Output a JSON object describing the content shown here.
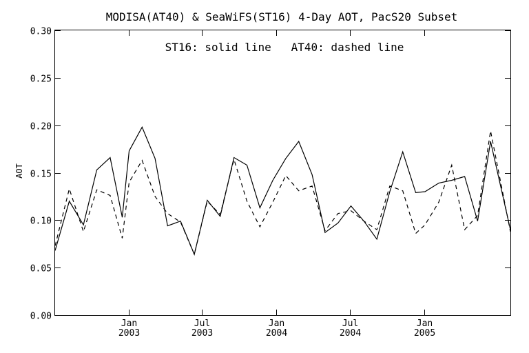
{
  "chart_data": {
    "type": "line",
    "title": "MODISA(AT40) & SeaWiFS(ST16) 4-Day AOT, PacS20 Subset",
    "annotation": "ST16: solid line   AT40: dashed line",
    "ylabel": "AOT",
    "xlabel": "",
    "ylim": [
      0.0,
      0.3
    ],
    "yticks": [
      0.0,
      0.05,
      0.1,
      0.15,
      0.2,
      0.25,
      0.3
    ],
    "ytick_labels": [
      "0.00",
      "0.05",
      "0.10",
      "0.15",
      "0.20",
      "0.25",
      "0.30"
    ],
    "xlim": [
      "2002-07-03",
      "2005-08-01"
    ],
    "xticks": [
      {
        "date": "2003-01-01",
        "line1": "Jan",
        "line2": "2003"
      },
      {
        "date": "2003-07-01",
        "line1": "Jul",
        "line2": "2003"
      },
      {
        "date": "2004-01-01",
        "line1": "Jan",
        "line2": "2004"
      },
      {
        "date": "2004-07-01",
        "line1": "Jul",
        "line2": "2004"
      },
      {
        "date": "2005-01-01",
        "line1": "Jan",
        "line2": "2005"
      }
    ],
    "grid": false,
    "legend": "none",
    "series": [
      {
        "name": "ST16",
        "style": "solid",
        "x": [
          "2002-07-03",
          "2002-08-07",
          "2002-09-11",
          "2002-10-14",
          "2002-11-16",
          "2002-12-16",
          "2003-01-02",
          "2003-02-03",
          "2003-03-07",
          "2003-04-07",
          "2003-05-09",
          "2003-06-12",
          "2003-07-14",
          "2003-08-15",
          "2003-09-18",
          "2003-10-20",
          "2003-11-21",
          "2003-12-23",
          "2004-01-24",
          "2004-02-25",
          "2004-03-29",
          "2004-04-30",
          "2004-06-01",
          "2004-07-03",
          "2004-08-04",
          "2004-09-05",
          "2004-10-07",
          "2004-11-08",
          "2004-12-10",
          "2005-01-02",
          "2005-02-05",
          "2005-03-09",
          "2005-04-10",
          "2005-05-12",
          "2005-06-13",
          "2005-08-01"
        ],
        "y": [
          0.068,
          0.12,
          0.095,
          0.153,
          0.166,
          0.103,
          0.173,
          0.198,
          0.165,
          0.094,
          0.099,
          0.064,
          0.121,
          0.104,
          0.166,
          0.158,
          0.113,
          0.142,
          0.165,
          0.183,
          0.148,
          0.087,
          0.097,
          0.115,
          0.099,
          0.08,
          0.13,
          0.172,
          0.129,
          0.13,
          0.139,
          0.142,
          0.146,
          0.099,
          0.183,
          0.09
        ]
      },
      {
        "name": "AT40",
        "style": "dashed",
        "x": [
          "2002-07-03",
          "2002-08-07",
          "2002-09-11",
          "2002-10-14",
          "2002-11-16",
          "2002-12-16",
          "2003-01-02",
          "2003-02-03",
          "2003-03-07",
          "2003-04-07",
          "2003-05-09",
          "2003-06-12",
          "2003-07-14",
          "2003-08-15",
          "2003-09-18",
          "2003-10-20",
          "2003-11-21",
          "2003-12-23",
          "2004-01-24",
          "2004-02-25",
          "2004-03-29",
          "2004-04-30",
          "2004-06-01",
          "2004-07-03",
          "2004-08-04",
          "2004-09-05",
          "2004-10-07",
          "2004-11-08",
          "2004-12-10",
          "2005-01-02",
          "2005-02-05",
          "2005-03-09",
          "2005-04-10",
          "2005-05-12",
          "2005-06-13",
          "2005-08-01"
        ],
        "y": [
          0.073,
          0.133,
          0.088,
          0.132,
          0.126,
          0.081,
          0.14,
          0.163,
          0.125,
          0.107,
          0.098,
          0.064,
          0.12,
          0.106,
          0.164,
          0.12,
          0.093,
          0.119,
          0.147,
          0.131,
          0.136,
          0.089,
          0.107,
          0.11,
          0.099,
          0.09,
          0.136,
          0.131,
          0.086,
          0.095,
          0.119,
          0.158,
          0.09,
          0.105,
          0.194,
          0.088
        ]
      }
    ]
  }
}
